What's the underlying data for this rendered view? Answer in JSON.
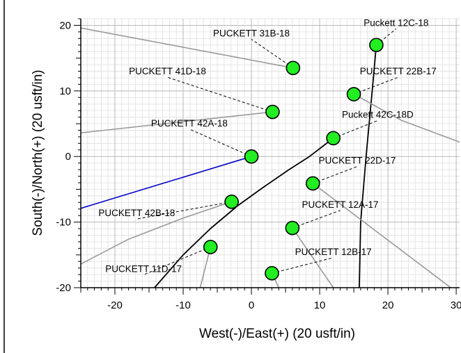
{
  "chart_data": {
    "type": "scatter",
    "xlabel": "West(-)/East(+) (20 usft/in)",
    "ylabel": "South(-)/North(+) (20 usft/in)",
    "xlim": [
      -25,
      30.5
    ],
    "ylim": [
      -20,
      21
    ],
    "x_ticks": [
      -20,
      -10,
      0,
      10,
      20,
      30
    ],
    "y_ticks": [
      -20,
      -10,
      0,
      10,
      20
    ],
    "grid": true,
    "marker_color": "#22ee22",
    "wells": [
      {
        "name": "Puckett 12C-18",
        "x": 18.3,
        "y": 17.0
      },
      {
        "name": "PUCKETT 31B-18",
        "x": 6.1,
        "y": 13.5
      },
      {
        "name": "PUCKETT 22B-17",
        "x": 15.0,
        "y": 9.5
      },
      {
        "name": "PUCKETT 41D-18",
        "x": 3.1,
        "y": 6.8
      },
      {
        "name": "Puckett 42C-18D",
        "x": 12.0,
        "y": 2.8
      },
      {
        "name": "PUCKETT 42A-18",
        "x": 0.0,
        "y": 0.0
      },
      {
        "name": "PUCKETT 22D-17",
        "x": 9.0,
        "y": -4.1
      },
      {
        "name": "PUCKETT 42B-18",
        "x": -2.9,
        "y": -6.9
      },
      {
        "name": "PUCKETT 12A-17",
        "x": 6.0,
        "y": -10.9
      },
      {
        "name": "PUCKETT 12B-17",
        "x": 3.0,
        "y": -17.8
      },
      {
        "name": "PUCKETT 11D-17",
        "x": -6.0,
        "y": -13.8
      }
    ],
    "label_positions": [
      {
        "x": 21.2,
        "y": 19.9
      },
      {
        "x": 0.0,
        "y": 18.3
      },
      {
        "x": 21.5,
        "y": 12.5
      },
      {
        "x": -12.3,
        "y": 12.5
      },
      {
        "x": 18.5,
        "y": 5.9
      },
      {
        "x": -9.1,
        "y": 4.6
      },
      {
        "x": 15.5,
        "y": -1.1
      },
      {
        "x": -16.8,
        "y": -9.1
      },
      {
        "x": 13.0,
        "y": -7.8
      },
      {
        "x": 12.0,
        "y": -15.0
      },
      {
        "x": -15.8,
        "y": -17.6
      }
    ],
    "paths": [
      {
        "color": "#000000",
        "width": 1.8,
        "points": [
          [
            -14.2,
            -20
          ],
          [
            -10,
            -15
          ],
          [
            -6,
            -11
          ],
          [
            -2,
            -7.5
          ],
          [
            1.6,
            -4.8
          ],
          [
            5.5,
            -2.0
          ],
          [
            8.5,
            0.0
          ],
          [
            10.5,
            1.6
          ],
          [
            12.0,
            2.8
          ]
        ]
      },
      {
        "color": "#000000",
        "width": 1.8,
        "points": [
          [
            15.8,
            -20
          ],
          [
            16.0,
            -10
          ],
          [
            16.8,
            0
          ],
          [
            17.6,
            9
          ],
          [
            18.3,
            17.0
          ]
        ]
      },
      {
        "color": "#0000cc",
        "width": 1.6,
        "points": [
          [
            -25,
            -7.9
          ],
          [
            0.0,
            0.0
          ]
        ]
      },
      {
        "color": "#999999",
        "width": 1.6,
        "points": [
          [
            -25,
            19.6
          ],
          [
            6.1,
            13.5
          ]
        ]
      },
      {
        "color": "#999999",
        "width": 1.6,
        "points": [
          [
            -25,
            3.6
          ],
          [
            3.1,
            6.8
          ]
        ]
      },
      {
        "color": "#999999",
        "width": 1.6,
        "points": [
          [
            -25,
            -16.4
          ],
          [
            -18,
            -12.6
          ],
          [
            -10,
            -9.4
          ],
          [
            -2.9,
            -6.9
          ]
        ]
      },
      {
        "color": "#999999",
        "width": 1.6,
        "points": [
          [
            15.0,
            9.5
          ],
          [
            22,
            5.5
          ],
          [
            30.5,
            2.2
          ]
        ]
      },
      {
        "color": "#999999",
        "width": 1.6,
        "points": [
          [
            9.0,
            -4.1
          ],
          [
            29.2,
            -20
          ]
        ]
      },
      {
        "color": "#999999",
        "width": 1.6,
        "points": [
          [
            6.0,
            -10.9
          ],
          [
            12.0,
            -20
          ]
        ]
      },
      {
        "color": "#999999",
        "width": 1.6,
        "points": [
          [
            3.0,
            -17.8
          ],
          [
            4.0,
            -20
          ]
        ]
      },
      {
        "color": "#999999",
        "width": 1.6,
        "points": [
          [
            -6.0,
            -13.8
          ],
          [
            -7.5,
            -20
          ]
        ]
      }
    ]
  }
}
